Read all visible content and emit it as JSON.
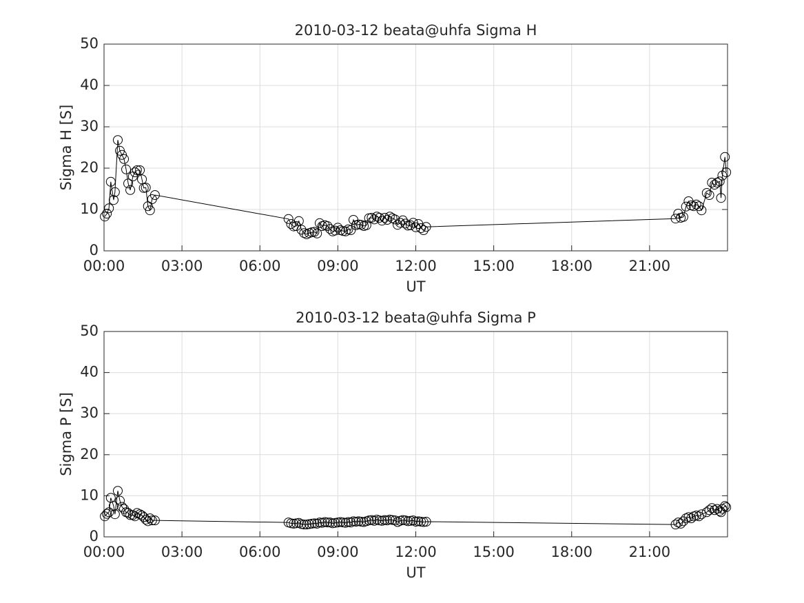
{
  "chart_data": [
    {
      "type": "line",
      "title": "2010-03-12  beata@uhfa Sigma H",
      "xlabel": "UT",
      "ylabel": "Sigma H [S]",
      "xlim": [
        0,
        24
      ],
      "ylim": [
        0,
        50
      ],
      "xticks": [
        {
          "value": 0,
          "label": "00:00"
        },
        {
          "value": 3,
          "label": "03:00"
        },
        {
          "value": 6,
          "label": "06:00"
        },
        {
          "value": 9,
          "label": "09:00"
        },
        {
          "value": 12,
          "label": "12:00"
        },
        {
          "value": 15,
          "label": "15:00"
        },
        {
          "value": 18,
          "label": "18:00"
        },
        {
          "value": 21,
          "label": "21:00"
        }
      ],
      "yticks": [
        0,
        10,
        20,
        30,
        40,
        50
      ],
      "grid": true,
      "series": [
        {
          "color": "#000000",
          "x": [
            0.03,
            0.11,
            0.19,
            0.26,
            0.37,
            0.42,
            0.53,
            0.61,
            0.69,
            0.77,
            0.85,
            0.93,
            1.01,
            1.11,
            1.19,
            1.27,
            1.38,
            1.46,
            1.53,
            1.61,
            1.69,
            1.77,
            1.85,
            1.96,
            7.1,
            7.2,
            7.3,
            7.4,
            7.5,
            7.6,
            7.7,
            7.8,
            7.9,
            8.0,
            8.1,
            8.2,
            8.3,
            8.4,
            8.5,
            8.6,
            8.7,
            8.8,
            8.9,
            9.0,
            9.1,
            9.2,
            9.3,
            9.4,
            9.5,
            9.6,
            9.7,
            9.8,
            9.9,
            10.0,
            10.1,
            10.2,
            10.3,
            10.4,
            10.5,
            10.6,
            10.7,
            10.8,
            10.9,
            11.0,
            11.1,
            11.2,
            11.3,
            11.4,
            11.5,
            11.6,
            11.7,
            11.8,
            11.9,
            12.0,
            12.1,
            12.2,
            12.3,
            12.4,
            22.0,
            22.1,
            22.2,
            22.3,
            22.4,
            22.5,
            22.6,
            22.7,
            22.8,
            22.9,
            23.0,
            23.2,
            23.3,
            23.4,
            23.5,
            23.6,
            23.7,
            23.75,
            23.8,
            23.9,
            23.95
          ],
          "values": [
            8.3,
            9.0,
            10.3,
            16.7,
            12.3,
            14.2,
            26.8,
            24.2,
            23.2,
            22.2,
            19.7,
            16.3,
            14.7,
            18.0,
            19.0,
            19.5,
            19.5,
            17.3,
            15.2,
            15.3,
            10.8,
            9.8,
            12.5,
            13.5,
            7.7,
            6.5,
            5.9,
            6.0,
            7.2,
            5.1,
            4.3,
            4.0,
            4.3,
            4.5,
            4.6,
            4.2,
            6.7,
            6.0,
            6.2,
            6.0,
            5.3,
            4.7,
            4.9,
            5.6,
            5.0,
            4.8,
            4.7,
            5.2,
            5.0,
            7.5,
            6.2,
            6.4,
            6.3,
            6.0,
            6.2,
            7.9,
            8.0,
            7.6,
            8.3,
            8.0,
            7.3,
            8.0,
            7.5,
            8.3,
            7.9,
            7.6,
            6.3,
            6.8,
            7.4,
            6.6,
            6.1,
            6.2,
            6.8,
            5.7,
            6.5,
            5.5,
            5.0,
            5.8,
            7.8,
            9.0,
            8.0,
            8.2,
            10.7,
            12.0,
            11.0,
            10.8,
            11.2,
            10.8,
            9.8,
            14.0,
            13.5,
            16.5,
            16.0,
            16.5,
            16.8,
            12.8,
            18.2,
            22.7,
            19.0
          ]
        }
      ]
    },
    {
      "type": "line",
      "title": "2010-03-12  beata@uhfa Sigma P",
      "xlabel": "UT",
      "ylabel": "Sigma P [S]",
      "xlim": [
        0,
        24
      ],
      "ylim": [
        0,
        50
      ],
      "xticks": [
        {
          "value": 0,
          "label": "00:00"
        },
        {
          "value": 3,
          "label": "03:00"
        },
        {
          "value": 6,
          "label": "06:00"
        },
        {
          "value": 9,
          "label": "09:00"
        },
        {
          "value": 12,
          "label": "12:00"
        },
        {
          "value": 15,
          "label": "15:00"
        },
        {
          "value": 18,
          "label": "18:00"
        },
        {
          "value": 21,
          "label": "21:00"
        }
      ],
      "yticks": [
        0,
        10,
        20,
        30,
        40,
        50
      ],
      "grid": true,
      "series": [
        {
          "color": "#000000",
          "x": [
            0.03,
            0.11,
            0.19,
            0.26,
            0.37,
            0.42,
            0.53,
            0.61,
            0.69,
            0.77,
            0.85,
            0.93,
            1.01,
            1.11,
            1.19,
            1.27,
            1.38,
            1.46,
            1.53,
            1.61,
            1.69,
            1.77,
            1.85,
            1.96,
            7.1,
            7.2,
            7.3,
            7.4,
            7.5,
            7.6,
            7.7,
            7.8,
            7.9,
            8.0,
            8.1,
            8.2,
            8.3,
            8.4,
            8.5,
            8.6,
            8.7,
            8.8,
            8.9,
            9.0,
            9.1,
            9.2,
            9.3,
            9.4,
            9.5,
            9.6,
            9.7,
            9.8,
            9.9,
            10.0,
            10.1,
            10.2,
            10.3,
            10.4,
            10.5,
            10.6,
            10.7,
            10.8,
            10.9,
            11.0,
            11.1,
            11.2,
            11.3,
            11.4,
            11.5,
            11.6,
            11.7,
            11.8,
            11.9,
            12.0,
            12.1,
            12.2,
            12.3,
            12.4,
            22.0,
            22.1,
            22.2,
            22.3,
            22.4,
            22.5,
            22.6,
            22.7,
            22.8,
            22.9,
            23.0,
            23.2,
            23.3,
            23.4,
            23.5,
            23.6,
            23.7,
            23.75,
            23.8,
            23.9,
            23.95
          ],
          "values": [
            5.0,
            5.6,
            6.0,
            9.5,
            7.5,
            5.5,
            11.2,
            8.8,
            7.3,
            6.8,
            6.0,
            5.8,
            5.3,
            5.3,
            5.0,
            5.8,
            5.5,
            5.2,
            4.8,
            4.2,
            3.8,
            4.5,
            4.0,
            4.0,
            3.5,
            3.3,
            3.2,
            3.3,
            3.4,
            3.1,
            3.0,
            3.0,
            3.1,
            3.2,
            3.3,
            3.2,
            3.5,
            3.4,
            3.6,
            3.5,
            3.5,
            3.3,
            3.4,
            3.5,
            3.6,
            3.5,
            3.4,
            3.6,
            3.5,
            3.8,
            3.7,
            3.8,
            3.7,
            3.6,
            3.8,
            4.0,
            4.1,
            3.9,
            4.2,
            4.0,
            3.9,
            4.1,
            4.0,
            4.2,
            4.1,
            4.0,
            3.6,
            3.9,
            4.1,
            4.0,
            3.8,
            3.9,
            4.0,
            3.7,
            3.8,
            3.7,
            3.6,
            3.7,
            3.0,
            3.5,
            3.2,
            3.8,
            4.5,
            4.8,
            4.5,
            5.0,
            5.2,
            5.0,
            5.5,
            6.0,
            6.5,
            7.0,
            6.5,
            6.8,
            6.3,
            6.0,
            6.8,
            7.5,
            7.2
          ]
        }
      ]
    }
  ]
}
